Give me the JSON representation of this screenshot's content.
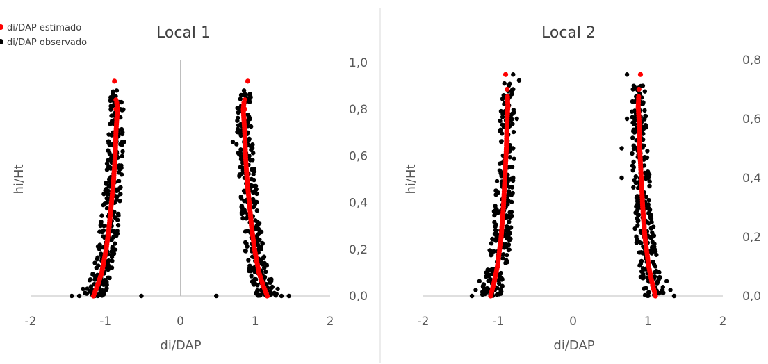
{
  "legend": [
    {
      "label": "di/DAP estimado",
      "color": "#ff0000"
    },
    {
      "label": "di/DAP observado",
      "color": "#000000"
    }
  ],
  "chart_data": [
    {
      "type": "scatter",
      "title": "Local 1",
      "xlabel": "di/DAP",
      "ylabel": "hi/Ht",
      "xlim": [
        -2,
        2
      ],
      "ylim": [
        0,
        1.0
      ],
      "xticks": [
        "-2",
        "-1",
        "0",
        "1",
        "2"
      ],
      "yticks": [
        "0,0",
        "0,2",
        "0,4",
        "0,6",
        "0,8",
        "1,0"
      ],
      "y_axis_position": "right",
      "grid": false,
      "series": [
        {
          "name": "di/DAP estimado",
          "color": "#ff0000",
          "profile": [
            [
              0.0,
              1.16
            ],
            [
              0.05,
              1.1
            ],
            [
              0.1,
              1.05
            ],
            [
              0.2,
              0.99
            ],
            [
              0.3,
              0.95
            ],
            [
              0.4,
              0.92
            ],
            [
              0.5,
              0.89
            ],
            [
              0.6,
              0.87
            ],
            [
              0.7,
              0.86
            ],
            [
              0.8,
              0.84
            ],
            [
              0.92,
              0.88
            ]
          ],
          "points": [
            [
              -1.16,
              0.0
            ],
            [
              -1.1,
              0.05
            ],
            [
              -1.05,
              0.1
            ],
            [
              -0.99,
              0.2
            ],
            [
              -0.95,
              0.3
            ],
            [
              -0.92,
              0.4
            ],
            [
              -0.89,
              0.5
            ],
            [
              -0.87,
              0.6
            ],
            [
              -0.86,
              0.7
            ],
            [
              -0.85,
              0.76
            ],
            [
              -0.86,
              0.8
            ],
            [
              -0.86,
              0.84
            ],
            [
              -0.88,
              0.92
            ],
            [
              1.16,
              0.0
            ],
            [
              1.1,
              0.05
            ],
            [
              1.05,
              0.1
            ],
            [
              0.99,
              0.2
            ],
            [
              0.95,
              0.3
            ],
            [
              0.92,
              0.4
            ],
            [
              0.89,
              0.5
            ],
            [
              0.87,
              0.6
            ],
            [
              0.86,
              0.7
            ],
            [
              0.85,
              0.76
            ],
            [
              0.86,
              0.8
            ],
            [
              0.86,
              0.84
            ],
            [
              0.9,
              0.92
            ]
          ]
        },
        {
          "name": "di/DAP observado",
          "color": "#000000",
          "points": [
            [
              -1.45,
              0.0
            ],
            [
              -1.35,
              0.0
            ],
            [
              -1.25,
              0.01
            ],
            [
              -1.3,
              0.03
            ],
            [
              -1.2,
              0.02
            ],
            [
              -1.15,
              0.05
            ],
            [
              -1.1,
              0.08
            ],
            [
              -1.12,
              0.12
            ],
            [
              -1.0,
              0.15
            ],
            [
              -1.08,
              0.2
            ],
            [
              -0.95,
              0.25
            ],
            [
              -1.02,
              0.3
            ],
            [
              -0.9,
              0.35
            ],
            [
              -0.98,
              0.4
            ],
            [
              -0.85,
              0.45
            ],
            [
              -0.95,
              0.5
            ],
            [
              -0.82,
              0.55
            ],
            [
              -0.92,
              0.6
            ],
            [
              -0.8,
              0.65
            ],
            [
              -0.75,
              0.66
            ],
            [
              -0.9,
              0.7
            ],
            [
              -0.85,
              0.75
            ],
            [
              -0.8,
              0.8
            ],
            [
              -0.92,
              0.84
            ],
            [
              -0.85,
              0.88
            ],
            [
              -0.52,
              0.0
            ],
            [
              1.45,
              0.0
            ],
            [
              1.35,
              0.0
            ],
            [
              1.25,
              0.01
            ],
            [
              1.3,
              0.03
            ],
            [
              1.2,
              0.02
            ],
            [
              1.15,
              0.05
            ],
            [
              1.1,
              0.08
            ],
            [
              1.12,
              0.12
            ],
            [
              1.0,
              0.15
            ],
            [
              1.08,
              0.2
            ],
            [
              0.95,
              0.25
            ],
            [
              1.02,
              0.3
            ],
            [
              0.9,
              0.35
            ],
            [
              0.98,
              0.4
            ],
            [
              0.85,
              0.45
            ],
            [
              0.95,
              0.5
            ],
            [
              0.82,
              0.55
            ],
            [
              0.92,
              0.6
            ],
            [
              0.75,
              0.65
            ],
            [
              0.7,
              0.66
            ],
            [
              0.9,
              0.7
            ],
            [
              0.85,
              0.75
            ],
            [
              0.8,
              0.8
            ],
            [
              0.92,
              0.84
            ],
            [
              0.85,
              0.88
            ],
            [
              0.48,
              0.0
            ]
          ]
        }
      ]
    },
    {
      "type": "scatter",
      "title": "Local 2",
      "xlabel": "di/DAP",
      "ylabel": "hi/Ht",
      "xlim": [
        -2,
        2
      ],
      "ylim": [
        0,
        0.8
      ],
      "xticks": [
        "-2",
        "-1",
        "0",
        "1",
        "2"
      ],
      "yticks": [
        "0,0",
        "0,2",
        "0,4",
        "0,6",
        "0,8"
      ],
      "y_axis_position": "right",
      "grid": false,
      "series": [
        {
          "name": "di/DAP estimado",
          "color": "#ff0000",
          "profile": [
            [
              0.0,
              1.1
            ],
            [
              0.05,
              1.05
            ],
            [
              0.1,
              1.01
            ],
            [
              0.2,
              0.96
            ],
            [
              0.3,
              0.93
            ],
            [
              0.4,
              0.91
            ],
            [
              0.5,
              0.89
            ],
            [
              0.6,
              0.88
            ],
            [
              0.64,
              0.87
            ],
            [
              0.7,
              0.88
            ],
            [
              0.75,
              0.9
            ]
          ],
          "points": [
            [
              -1.1,
              0.0
            ],
            [
              -1.05,
              0.05
            ],
            [
              -1.01,
              0.1
            ],
            [
              -0.96,
              0.2
            ],
            [
              -0.93,
              0.3
            ],
            [
              -0.91,
              0.4
            ],
            [
              -0.89,
              0.5
            ],
            [
              -0.88,
              0.6
            ],
            [
              -0.87,
              0.64
            ],
            [
              -0.88,
              0.7
            ],
            [
              -0.9,
              0.75
            ],
            [
              1.1,
              0.0
            ],
            [
              1.05,
              0.05
            ],
            [
              1.01,
              0.1
            ],
            [
              0.96,
              0.2
            ],
            [
              0.93,
              0.3
            ],
            [
              0.91,
              0.4
            ],
            [
              0.89,
              0.5
            ],
            [
              0.88,
              0.6
            ],
            [
              0.87,
              0.64
            ],
            [
              0.88,
              0.7
            ],
            [
              0.9,
              0.75
            ]
          ]
        },
        {
          "name": "di/DAP observado",
          "color": "#000000",
          "points": [
            [
              -1.35,
              0.0
            ],
            [
              -1.3,
              0.02
            ],
            [
              -1.2,
              0.03
            ],
            [
              -1.25,
              0.05
            ],
            [
              -1.15,
              0.08
            ],
            [
              -1.0,
              0.1
            ],
            [
              -1.1,
              0.15
            ],
            [
              -0.95,
              0.2
            ],
            [
              -1.05,
              0.25
            ],
            [
              -0.9,
              0.3
            ],
            [
              -1.0,
              0.35
            ],
            [
              -0.8,
              0.4
            ],
            [
              -0.95,
              0.45
            ],
            [
              -0.8,
              0.5
            ],
            [
              -0.95,
              0.55
            ],
            [
              -0.75,
              0.6
            ],
            [
              -0.92,
              0.65
            ],
            [
              -0.8,
              0.7
            ],
            [
              -0.72,
              0.73
            ],
            [
              -0.8,
              0.75
            ],
            [
              1.35,
              0.0
            ],
            [
              1.3,
              0.02
            ],
            [
              1.2,
              0.03
            ],
            [
              1.25,
              0.05
            ],
            [
              1.15,
              0.08
            ],
            [
              1.0,
              0.1
            ],
            [
              1.1,
              0.15
            ],
            [
              0.95,
              0.2
            ],
            [
              1.05,
              0.25
            ],
            [
              0.9,
              0.3
            ],
            [
              0.95,
              0.35
            ],
            [
              0.65,
              0.4
            ],
            [
              0.9,
              0.45
            ],
            [
              0.65,
              0.5
            ],
            [
              0.9,
              0.55
            ],
            [
              0.72,
              0.6
            ],
            [
              0.92,
              0.65
            ],
            [
              0.8,
              0.7
            ],
            [
              0.72,
              0.75
            ]
          ]
        }
      ]
    }
  ]
}
